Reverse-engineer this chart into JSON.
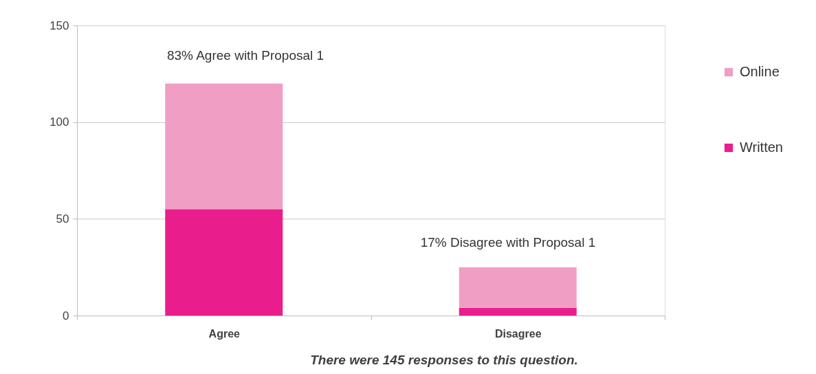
{
  "chart_data": {
    "type": "bar",
    "stacked": true,
    "categories": [
      "Agree",
      "Disagree"
    ],
    "series": [
      {
        "name": "Written",
        "color": "#e91e8c",
        "values": [
          55,
          4
        ]
      },
      {
        "name": "Online",
        "color": "#f19ec4",
        "values": [
          65,
          21
        ]
      }
    ],
    "ylim": [
      0,
      150
    ],
    "yticks": [
      0,
      50,
      100,
      150
    ],
    "grid": "y",
    "legend": "top right",
    "annotations": [
      "83% Agree with Proposal 1",
      "17% Disagree with Proposal 1",
      "There were 145 responses to this question."
    ]
  }
}
